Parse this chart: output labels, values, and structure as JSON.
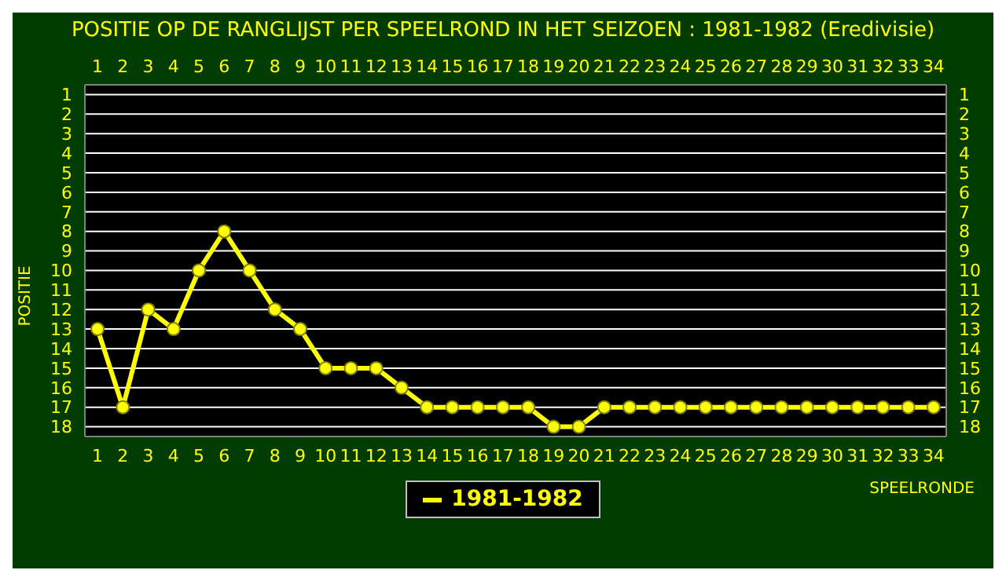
{
  "chart_data": {
    "type": "line",
    "title": "POSITIE OP DE RANGLIJST PER  SPEELROND IN HET SEIZOEN : 1981-1982 (Eredivisie)",
    "xlabel": "SPEELRONDE",
    "ylabel": "POSITIE",
    "x": [
      1,
      2,
      3,
      4,
      5,
      6,
      7,
      8,
      9,
      10,
      11,
      12,
      13,
      14,
      15,
      16,
      17,
      18,
      19,
      20,
      21,
      22,
      23,
      24,
      25,
      26,
      27,
      28,
      29,
      30,
      31,
      32,
      33,
      34
    ],
    "series": [
      {
        "name": "1981-1982",
        "color": "#ffff00",
        "values": [
          13,
          17,
          12,
          13,
          10,
          8,
          10,
          12,
          13,
          15,
          15,
          15,
          16,
          17,
          17,
          17,
          17,
          17,
          18,
          18,
          17,
          17,
          17,
          17,
          17,
          17,
          17,
          17,
          17,
          17,
          17,
          17,
          17,
          17
        ]
      }
    ],
    "xlim": [
      0.5,
      34.5
    ],
    "xticks": [
      1,
      2,
      3,
      4,
      5,
      6,
      7,
      8,
      9,
      10,
      11,
      12,
      13,
      14,
      15,
      16,
      17,
      18,
      19,
      20,
      21,
      22,
      23,
      24,
      25,
      26,
      27,
      28,
      29,
      30,
      31,
      32,
      33,
      34
    ],
    "x2lim": [
      0.5,
      34.5
    ],
    "x2ticks": [
      1,
      2,
      3,
      4,
      5,
      6,
      7,
      8,
      9,
      10,
      11,
      12,
      13,
      14,
      15,
      16,
      17,
      18,
      19,
      20,
      21,
      22,
      23,
      24,
      25,
      26,
      27,
      28,
      29,
      30,
      31,
      32,
      33,
      34
    ],
    "ylim": [
      18.5,
      0.5
    ],
    "yticks": [
      1,
      2,
      3,
      4,
      5,
      6,
      7,
      8,
      9,
      10,
      11,
      12,
      13,
      14,
      15,
      16,
      17,
      18
    ],
    "y2lim": [
      18.5,
      0.5
    ],
    "y2ticks": [
      1,
      2,
      3,
      4,
      5,
      6,
      7,
      8,
      9,
      10,
      11,
      12,
      13,
      14,
      15,
      16,
      17,
      18
    ],
    "grid": "y",
    "legend": "bottom",
    "marker": "circle",
    "line_style": "solid"
  }
}
